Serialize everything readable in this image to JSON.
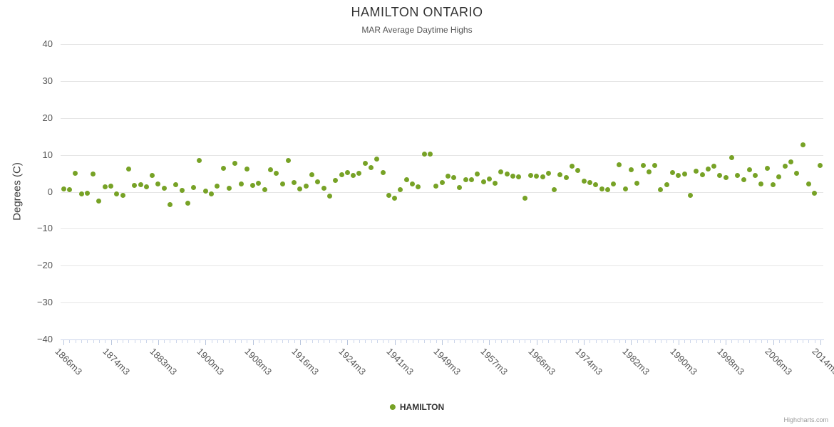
{
  "credits": "Highcharts.com",
  "colors": {
    "marker": "#77a226",
    "gridline": "#e6e6e6",
    "axis_line": "#ccd6eb",
    "title_text": "#333333",
    "label_text": "#555555",
    "credits_text": "#999999"
  },
  "chart_data": {
    "type": "scatter",
    "title": "HAMILTON ONTARIO",
    "subtitle": "MAR Average Daytime Highs",
    "ylabel": "Degrees (C)",
    "ylim": [
      -40,
      40
    ],
    "y_tick_step": 10,
    "y_ticks": [
      40,
      30,
      20,
      10,
      0,
      -10,
      -20,
      -30,
      -40
    ],
    "grid": true,
    "legend_position": "bottom-center",
    "marker_color": "#77a226",
    "x_tick_interval": 8,
    "x_tick_labels": [
      "1866m3",
      "1874m3",
      "1883m3",
      "1900m3",
      "1908m3",
      "1916m3",
      "1924m3",
      "1941m3",
      "1949m3",
      "1957m3",
      "1966m3",
      "1974m3",
      "1982m3",
      "1990m3",
      "1998m3",
      "2006m3",
      "2014m3"
    ],
    "categories": [
      "1866m3",
      "1867m3",
      "1868m3",
      "1869m3",
      "1870m3",
      "1871m3",
      "1872m3",
      "1873m3",
      "1874m3",
      "1875m3",
      "1877m3",
      "1878m3",
      "1879m3",
      "1880m3",
      "1881m3",
      "1882m3",
      "1883m3",
      "1884m3",
      "1885m3",
      "1886m3",
      "1888m3",
      "1890m3",
      "1893m3",
      "1896m3",
      "1900m3",
      "1901m3",
      "1902m3",
      "1903m3",
      "1904m3",
      "1905m3",
      "1906m3",
      "1907m3",
      "1908m3",
      "1909m3",
      "1910m3",
      "1911m3",
      "1912m3",
      "1913m3",
      "1914m3",
      "1915m3",
      "1916m3",
      "1917m3",
      "1918m3",
      "1919m3",
      "1920m3",
      "1921m3",
      "1922m3",
      "1923m3",
      "1924m3",
      "1925m3",
      "1927m3",
      "1929m3",
      "1931m3",
      "1933m3",
      "1935m3",
      "1938m3",
      "1941m3",
      "1942m3",
      "1943m3",
      "1944m3",
      "1945m3",
      "1946m3",
      "1947m3",
      "1948m3",
      "1949m3",
      "1950m3",
      "1951m3",
      "1952m3",
      "1953m3",
      "1954m3",
      "1955m3",
      "1956m3",
      "1957m3",
      "1958m3",
      "1959m3",
      "1960m3",
      "1962m3",
      "1963m3",
      "1964m3",
      "1965m3",
      "1966m3",
      "1967m3",
      "1968m3",
      "1969m3",
      "1970m3",
      "1971m3",
      "1972m3",
      "1973m3",
      "1974m3",
      "1975m3",
      "1976m3",
      "1977m3",
      "1978m3",
      "1979m3",
      "1980m3",
      "1981m3",
      "1982m3",
      "1983m3",
      "1984m3",
      "1985m3",
      "1986m3",
      "1987m3",
      "1988m3",
      "1989m3",
      "1990m3",
      "1991m3",
      "1992m3",
      "1993m3",
      "1994m3",
      "1995m3",
      "1996m3",
      "1997m3",
      "1998m3",
      "1999m3",
      "2000m3",
      "2001m3",
      "2002m3",
      "2003m3",
      "2004m3",
      "2005m3",
      "2006m3",
      "2007m3",
      "2008m3",
      "2009m3",
      "2010m3",
      "2011m3",
      "2012m3",
      "2013m3",
      "2014m3"
    ],
    "series": [
      {
        "name": "HAMILTON",
        "values": [
          0.7,
          0.5,
          5.0,
          -0.6,
          -0.3,
          4.9,
          -2.5,
          1.3,
          1.6,
          -0.5,
          -0.9,
          6.1,
          1.8,
          2.0,
          1.4,
          4.5,
          2.2,
          1.0,
          -3.5,
          1.9,
          0.4,
          -3.0,
          1.1,
          8.5,
          0.2,
          -0.5,
          1.6,
          6.4,
          0.9,
          7.7,
          2.1,
          6.2,
          1.7,
          2.4,
          0.6,
          5.9,
          5.1,
          2.2,
          8.4,
          2.5,
          0.7,
          1.5,
          4.7,
          2.7,
          0.9,
          -1.2,
          3.1,
          4.6,
          5.3,
          4.4,
          5.0,
          7.7,
          6.5,
          8.9,
          5.3,
          -1.0,
          -1.7,
          0.5,
          3.3,
          2.2,
          1.4,
          10.3,
          10.2,
          1.5,
          2.6,
          4.3,
          3.9,
          1.2,
          3.3,
          3.2,
          4.8,
          2.7,
          3.5,
          2.4,
          5.4,
          4.8,
          4.3,
          4.0,
          -1.8,
          4.4,
          4.2,
          4.0,
          5.0,
          0.6,
          4.7,
          3.8,
          7.0,
          5.8,
          2.9,
          2.5,
          1.9,
          0.8,
          0.6,
          2.2,
          7.3,
          0.8,
          6.0,
          2.4,
          7.2,
          5.5,
          7.1,
          0.6,
          2.0,
          5.2,
          4.5,
          4.9,
          -1.0,
          5.6,
          4.6,
          6.2,
          7.0,
          4.5,
          3.8,
          9.3,
          4.4,
          3.2,
          5.9,
          4.4,
          2.2,
          6.3,
          2.0,
          4.1,
          6.9,
          8.1,
          5.0,
          12.7,
          2.1,
          -0.3,
          7.1
        ]
      }
    ]
  }
}
